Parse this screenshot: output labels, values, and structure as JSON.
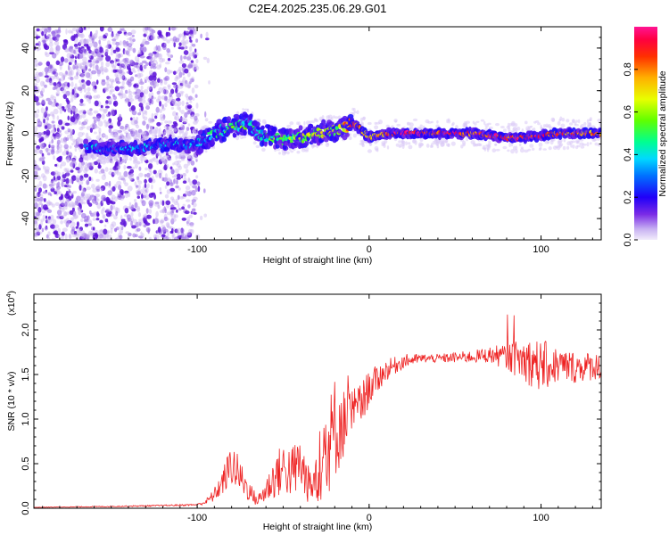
{
  "chart_data": [
    {
      "type": "heatmap",
      "title": "C2E4.2025.235.06.29.G01",
      "xlabel": "Height of straight line (km)",
      "ylabel": "Frequency (Hz)",
      "xlim": [
        -195,
        135
      ],
      "ylim": [
        -50,
        50
      ],
      "x_ticks": [
        -100,
        0,
        100
      ],
      "x_tick_labels": [
        "-100",
        "0",
        "100"
      ],
      "y_ticks": [
        -40,
        -20,
        0,
        20,
        40
      ],
      "y_tick_labels": [
        "-40",
        "-20",
        "0",
        "20",
        "40"
      ],
      "colorbar": {
        "label": "Normalized spectral amplitude",
        "range": [
          0,
          1
        ],
        "ticks": [
          0.0,
          0.2,
          0.4,
          0.6,
          0.8
        ],
        "tick_labels": [
          "0.0",
          "0.2",
          "0.4",
          "0.6",
          "0.8"
        ],
        "colors": [
          "#e8ddf7",
          "#a070ee",
          "#5a00e0",
          "#0000ff",
          "#00c8ff",
          "#00ff80",
          "#a0ff00",
          "#ffff00",
          "#ff8000",
          "#ff0000",
          "#ff0080"
        ]
      },
      "trace": {
        "x": [
          -165,
          -155,
          -145,
          -135,
          -125,
          -115,
          -105,
          -98,
          -90,
          -80,
          -70,
          -65,
          -60,
          -55,
          -50,
          -45,
          -40,
          -35,
          -30,
          -25,
          -20,
          -15,
          -10,
          -5,
          0,
          10,
          20,
          30,
          40,
          50,
          60,
          70,
          80,
          90,
          100,
          110,
          120,
          135
        ],
        "y": [
          -6,
          -7,
          -7,
          -7,
          -6,
          -5,
          -6,
          -4,
          0,
          3,
          5,
          0,
          -1,
          -2,
          -3,
          -2,
          -2,
          -1,
          0,
          1,
          1,
          2,
          5,
          2,
          -2,
          0,
          0,
          0,
          0,
          0,
          0,
          -1,
          -2,
          -2,
          -1,
          0,
          0,
          0
        ],
        "amplitude": [
          0.35,
          0.3,
          0.3,
          0.3,
          0.3,
          0.32,
          0.3,
          0.35,
          0.4,
          0.5,
          0.45,
          0.4,
          0.45,
          0.5,
          0.55,
          0.5,
          0.55,
          0.6,
          0.6,
          0.62,
          0.6,
          0.7,
          0.85,
          0.8,
          0.75,
          0.8,
          0.95,
          0.95,
          0.9,
          0.95,
          0.85,
          0.9,
          0.9,
          0.85,
          0.9,
          0.85,
          0.8,
          0.75
        ]
      },
      "noise_region_x": [
        -195,
        -100
      ]
    },
    {
      "type": "line",
      "xlabel": "Height of straight line (km)",
      "ylabel": "SNR (10 * v/v)",
      "y_multiplier_label": "(x10",
      "y_multiplier_exponent": "4",
      "xlim": [
        -195,
        135
      ],
      "ylim": [
        0,
        24000
      ],
      "x_ticks": [
        -100,
        0,
        100
      ],
      "x_tick_labels": [
        "-100",
        "0",
        "100"
      ],
      "y_ticks": [
        0,
        5000,
        10000,
        15000,
        20000
      ],
      "y_tick_labels": [
        "0.0",
        "0.5",
        "1.0",
        "1.5",
        "2.0"
      ],
      "line_color": "#ee2222",
      "series": [
        {
          "name": "SNR",
          "x": [
            -195,
            -150,
            -120,
            -100,
            -95,
            -90,
            -85,
            -80,
            -75,
            -70,
            -65,
            -60,
            -55,
            -50,
            -45,
            -40,
            -35,
            -30,
            -25,
            -20,
            -15,
            -10,
            -5,
            0,
            10,
            20,
            30,
            40,
            50,
            60,
            70,
            80,
            90,
            100,
            110,
            120,
            135
          ],
          "y": [
            100,
            200,
            300,
            400,
            700,
            1500,
            3000,
            5000,
            3500,
            2000,
            800,
            2000,
            3500,
            4500,
            4000,
            5000,
            2500,
            3500,
            6000,
            9000,
            9500,
            10500,
            11500,
            13500,
            15500,
            16500,
            16800,
            16800,
            16900,
            17000,
            17200,
            17000,
            16600,
            16000,
            16000,
            15800,
            16000
          ],
          "jitter": [
            20,
            60,
            80,
            100,
            300,
            800,
            1500,
            2500,
            2000,
            1200,
            600,
            1500,
            2500,
            3000,
            3000,
            3500,
            2000,
            3000,
            5000,
            6000,
            4000,
            3000,
            2500,
            2000,
            1200,
            800,
            500,
            500,
            600,
            700,
            900,
            1500,
            2500,
            3000,
            2000,
            1800,
            1500
          ]
        }
      ]
    }
  ]
}
